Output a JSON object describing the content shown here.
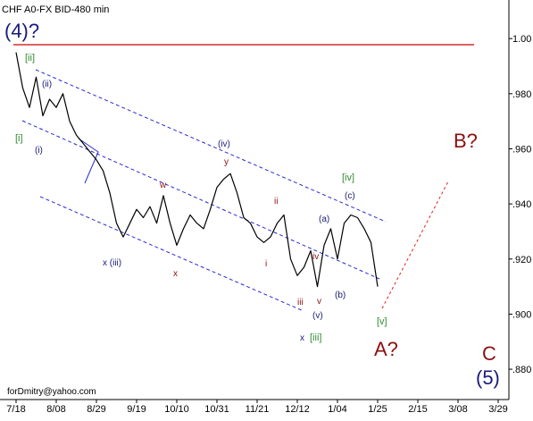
{
  "chart_data": {
    "type": "line",
    "title": "CHF A0-FX BID-480 min",
    "footer": "forDmitry@yahoo.com",
    "categories": [
      "7/18",
      null,
      null,
      null,
      null,
      null,
      "8/08",
      null,
      null,
      null,
      null,
      null,
      "8/29",
      null,
      null,
      null,
      null,
      null,
      "9/19",
      null,
      null,
      null,
      null,
      null,
      "10/10",
      null,
      null,
      null,
      null,
      null,
      "10/31",
      null,
      null,
      null,
      null,
      null,
      "11/21",
      null,
      null,
      null,
      null,
      null,
      "12/12",
      null,
      null,
      null,
      null,
      null,
      "1/04",
      null,
      null,
      null,
      null,
      null,
      "1/25",
      null,
      null,
      null,
      null,
      null,
      "2/15",
      null,
      null,
      null,
      null,
      null,
      "3/08",
      null,
      null,
      null,
      null,
      null,
      "3/29"
    ],
    "values": [
      0.995,
      0.982,
      0.975,
      0.986,
      0.972,
      0.978,
      0.975,
      0.98,
      0.97,
      0.965,
      0.962,
      0.959,
      0.956,
      0.952,
      0.944,
      0.933,
      0.928,
      0.933,
      0.938,
      0.935,
      0.939,
      0.933,
      0.943,
      0.933,
      0.925,
      0.931,
      0.936,
      0.933,
      0.931,
      0.938,
      0.946,
      0.949,
      0.951,
      0.944,
      0.935,
      0.933,
      0.928,
      0.926,
      0.928,
      0.933,
      0.936,
      0.92,
      0.914,
      0.917,
      0.923,
      0.91,
      0.925,
      0.931,
      0.92,
      0.933,
      0.936,
      0.935,
      0.931,
      0.926,
      0.91,
      null,
      null,
      null,
      null,
      null,
      null,
      null,
      null,
      null,
      null,
      null,
      null,
      null,
      null,
      null,
      null,
      null,
      null
    ],
    "color": "#000000",
    "ylim": [
      0.869,
      1.014
    ],
    "yticks": [
      {
        "value": 1.0,
        "label": "1.00"
      },
      {
        "value": 0.98,
        "label": ".980"
      },
      {
        "value": 0.96,
        "label": ".960"
      },
      {
        "value": 0.94,
        "label": ".940"
      },
      {
        "value": 0.92,
        "label": ".920"
      },
      {
        "value": 0.9,
        "label": ".900"
      },
      {
        "value": 0.88,
        "label": ".880"
      }
    ],
    "grid": false,
    "annotations": [
      "(4)?",
      "[ii]",
      "(ii)",
      "[i]",
      "(i)",
      "x (iii)",
      "x",
      "w",
      "(iv)",
      "y",
      "ii",
      "i",
      "iv",
      "(a)",
      "[iv]",
      "(c)",
      "iii",
      "v",
      "(b)",
      "(v)",
      "x",
      "[iii]",
      "[v]",
      "B?",
      "A?",
      "C",
      "(5)"
    ]
  }
}
